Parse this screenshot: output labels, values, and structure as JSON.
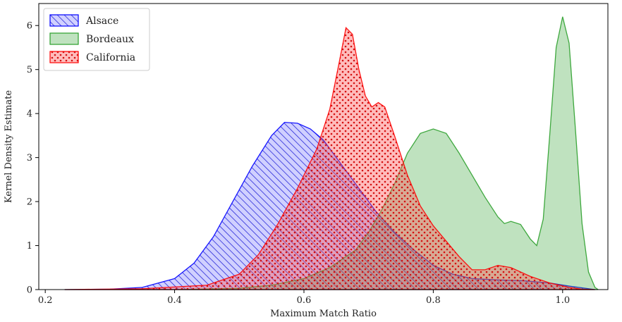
{
  "chart_data": {
    "type": "area",
    "title": "",
    "xlabel": "Maximum Match Ratio",
    "ylabel": "Kernel Density Estimate",
    "xlim": [
      0.19,
      1.07
    ],
    "ylim": [
      0,
      6.5
    ],
    "xticks": [
      0.2,
      0.4,
      0.6,
      0.8,
      1.0
    ],
    "xtick_labels": [
      "0.2",
      "0.4",
      "0.6",
      "0.8",
      "1.0"
    ],
    "yticks": [
      0,
      1,
      2,
      3,
      4,
      5,
      6
    ],
    "ytick_labels": [
      "0",
      "1",
      "2",
      "3",
      "4",
      "5",
      "6"
    ],
    "grid": false,
    "legend_position": "top-left",
    "series": [
      {
        "name": "Alsace",
        "color": "#0000ff",
        "fill_pattern": "hatch",
        "points": [
          [
            0.23,
            0.0
          ],
          [
            0.3,
            0.01
          ],
          [
            0.35,
            0.05
          ],
          [
            0.4,
            0.25
          ],
          [
            0.43,
            0.6
          ],
          [
            0.46,
            1.2
          ],
          [
            0.49,
            2.0
          ],
          [
            0.52,
            2.8
          ],
          [
            0.55,
            3.5
          ],
          [
            0.57,
            3.8
          ],
          [
            0.59,
            3.78
          ],
          [
            0.61,
            3.65
          ],
          [
            0.63,
            3.4
          ],
          [
            0.65,
            3.0
          ],
          [
            0.68,
            2.4
          ],
          [
            0.71,
            1.8
          ],
          [
            0.74,
            1.3
          ],
          [
            0.77,
            0.9
          ],
          [
            0.8,
            0.55
          ],
          [
            0.83,
            0.35
          ],
          [
            0.86,
            0.25
          ],
          [
            0.9,
            0.22
          ],
          [
            0.94,
            0.2
          ],
          [
            0.98,
            0.15
          ],
          [
            1.01,
            0.08
          ],
          [
            1.04,
            0.02
          ],
          [
            1.05,
            0.0
          ]
        ]
      },
      {
        "name": "Bordeaux",
        "color": "#2ca02c",
        "fill_pattern": "solid",
        "points": [
          [
            0.23,
            0.0
          ],
          [
            0.4,
            0.0
          ],
          [
            0.5,
            0.03
          ],
          [
            0.55,
            0.1
          ],
          [
            0.6,
            0.25
          ],
          [
            0.64,
            0.5
          ],
          [
            0.68,
            0.9
          ],
          [
            0.7,
            1.3
          ],
          [
            0.72,
            1.8
          ],
          [
            0.74,
            2.4
          ],
          [
            0.76,
            3.1
          ],
          [
            0.78,
            3.55
          ],
          [
            0.8,
            3.65
          ],
          [
            0.82,
            3.55
          ],
          [
            0.84,
            3.1
          ],
          [
            0.86,
            2.6
          ],
          [
            0.88,
            2.1
          ],
          [
            0.9,
            1.65
          ],
          [
            0.91,
            1.5
          ],
          [
            0.92,
            1.55
          ],
          [
            0.935,
            1.48
          ],
          [
            0.95,
            1.15
          ],
          [
            0.96,
            1.0
          ],
          [
            0.97,
            1.6
          ],
          [
            0.98,
            3.5
          ],
          [
            0.99,
            5.5
          ],
          [
            1.0,
            6.2
          ],
          [
            1.01,
            5.6
          ],
          [
            1.02,
            3.6
          ],
          [
            1.03,
            1.5
          ],
          [
            1.04,
            0.4
          ],
          [
            1.05,
            0.05
          ],
          [
            1.055,
            0.0
          ]
        ]
      },
      {
        "name": "California",
        "color": "#ff0000",
        "fill_pattern": "dots",
        "points": [
          [
            0.23,
            0.0
          ],
          [
            0.35,
            0.02
          ],
          [
            0.45,
            0.1
          ],
          [
            0.5,
            0.35
          ],
          [
            0.53,
            0.8
          ],
          [
            0.56,
            1.5
          ],
          [
            0.59,
            2.3
          ],
          [
            0.62,
            3.2
          ],
          [
            0.64,
            4.1
          ],
          [
            0.655,
            5.2
          ],
          [
            0.665,
            5.95
          ],
          [
            0.675,
            5.8
          ],
          [
            0.685,
            5.0
          ],
          [
            0.695,
            4.4
          ],
          [
            0.705,
            4.15
          ],
          [
            0.715,
            4.25
          ],
          [
            0.725,
            4.15
          ],
          [
            0.74,
            3.5
          ],
          [
            0.76,
            2.6
          ],
          [
            0.78,
            1.9
          ],
          [
            0.8,
            1.45
          ],
          [
            0.82,
            1.1
          ],
          [
            0.84,
            0.75
          ],
          [
            0.86,
            0.45
          ],
          [
            0.88,
            0.45
          ],
          [
            0.9,
            0.55
          ],
          [
            0.92,
            0.5
          ],
          [
            0.95,
            0.3
          ],
          [
            0.98,
            0.15
          ],
          [
            1.01,
            0.05
          ],
          [
            1.03,
            0.01
          ],
          [
            1.05,
            0.0
          ]
        ]
      }
    ]
  }
}
